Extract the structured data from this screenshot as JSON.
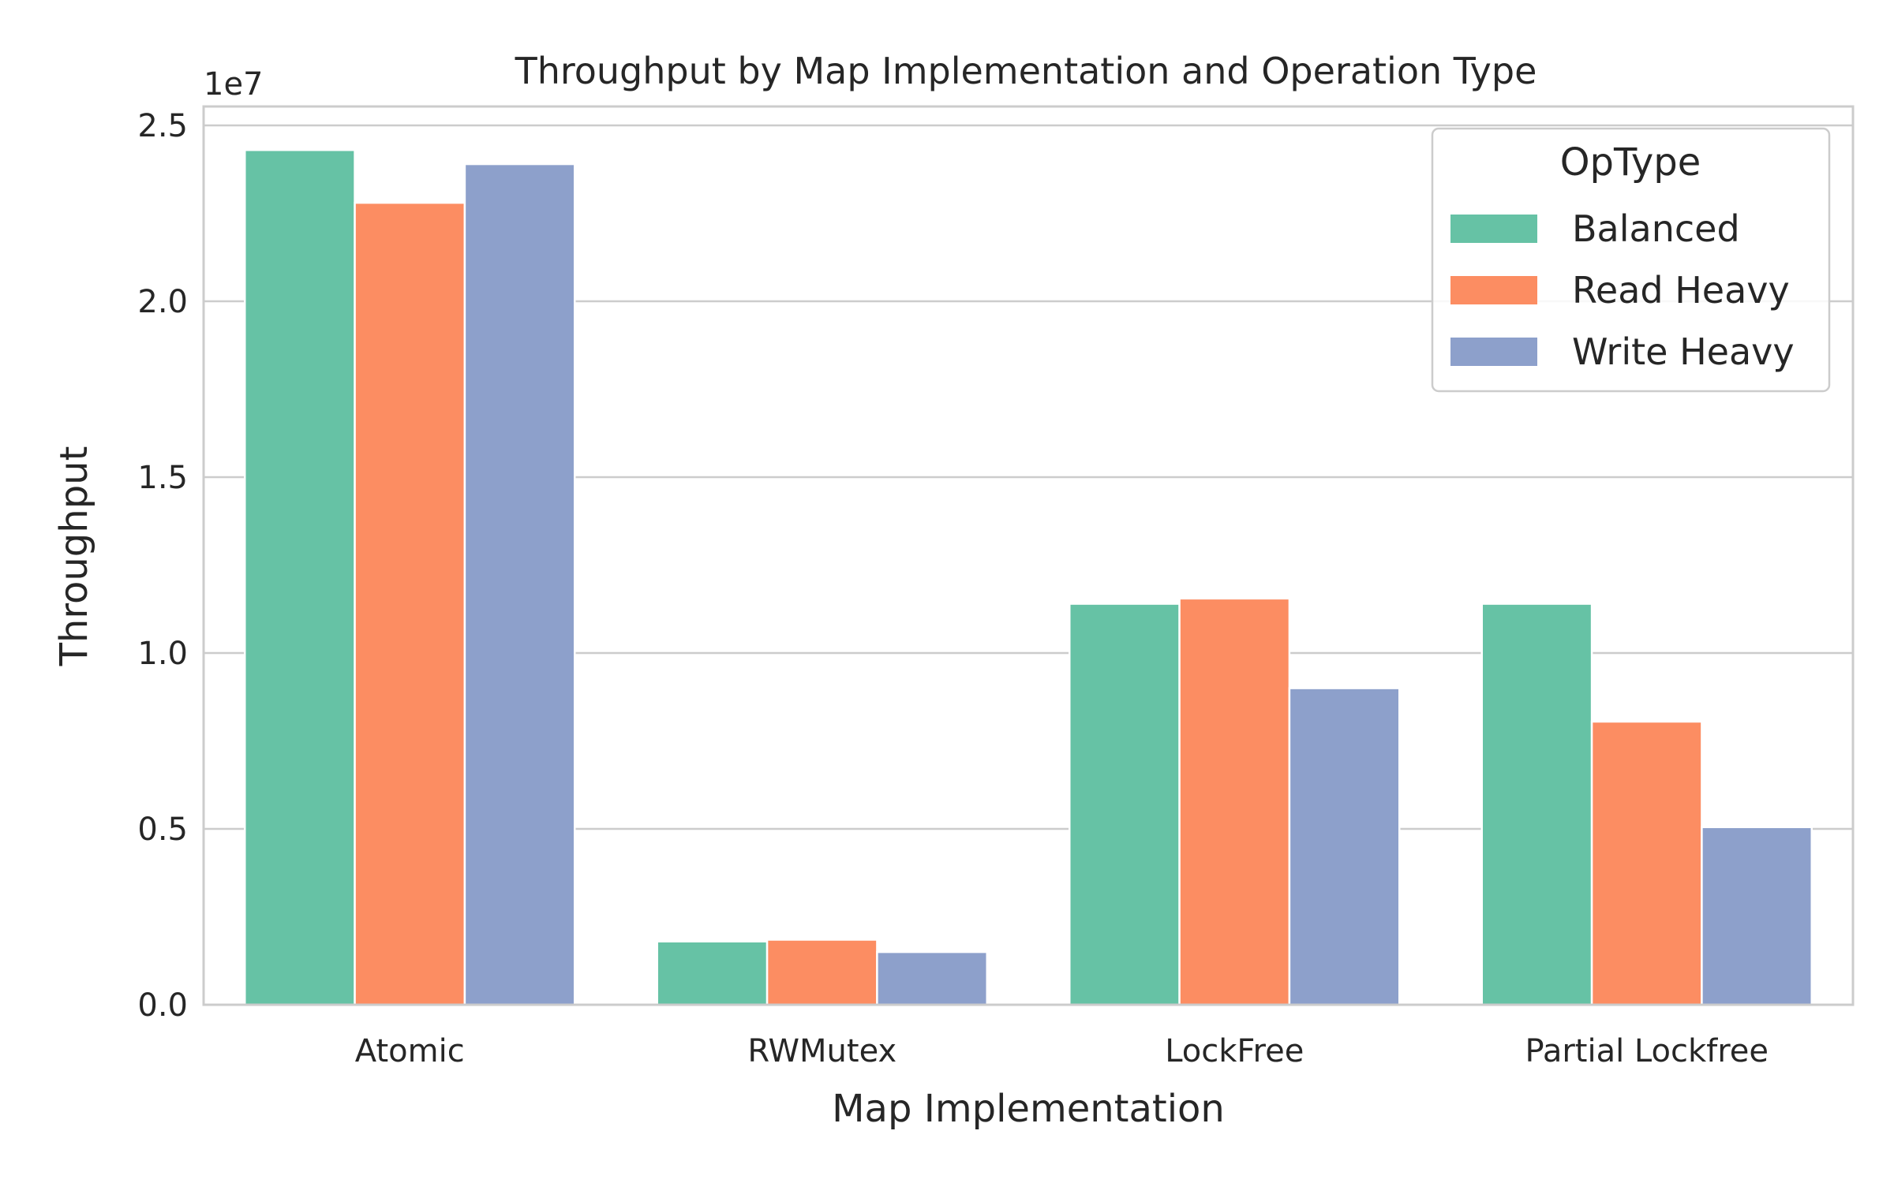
{
  "chart_data": {
    "type": "bar",
    "title": "Throughput by Map Implementation and Operation Type",
    "xlabel": "Map Implementation",
    "ylabel": "Throughput",
    "offset_label": "1e7",
    "scale": 10000000,
    "categories": [
      "Atomic",
      "RWMutex",
      "LockFree",
      "Partial Lockfree"
    ],
    "series": [
      {
        "name": "Balanced",
        "color": "#66c2a5",
        "values": [
          24300000,
          1800000,
          11400000,
          11400000
        ]
      },
      {
        "name": "Read Heavy",
        "color": "#fc8d62",
        "values": [
          22800000,
          1850000,
          11550000,
          8050000
        ]
      },
      {
        "name": "Write Heavy",
        "color": "#8da0cb",
        "values": [
          23900000,
          1500000,
          9000000,
          5050000
        ]
      }
    ],
    "ylim": [
      0,
      25000000
    ],
    "yticks": [
      0,
      5000000,
      10000000,
      15000000,
      20000000,
      25000000
    ],
    "ytick_labels": [
      "0.0",
      "0.5",
      "1.0",
      "1.5",
      "2.0",
      "2.5"
    ],
    "grid": true,
    "legend": {
      "title": "OpType",
      "placement": "top-right"
    }
  }
}
